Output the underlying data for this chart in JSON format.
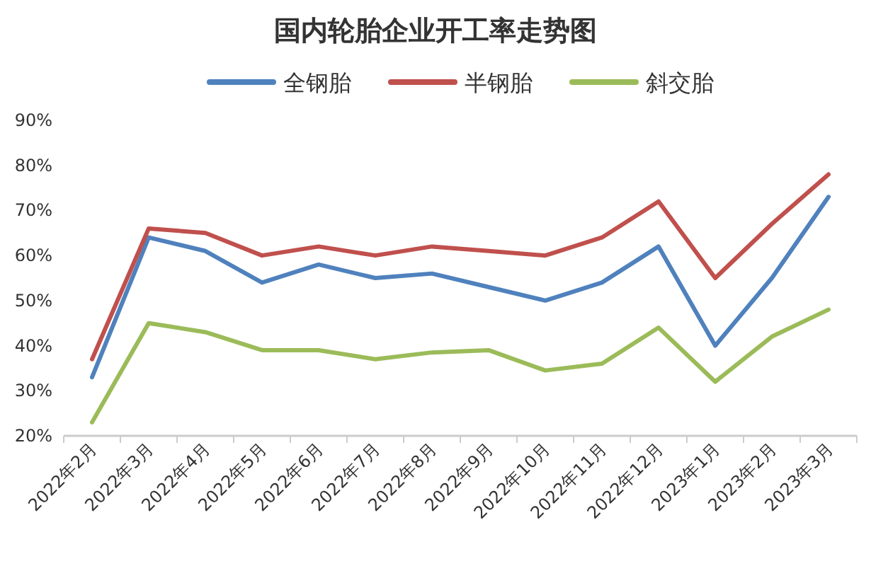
{
  "chart_data": {
    "type": "line",
    "title": "国内轮胎企业开工率走势图",
    "categories": [
      "2022年2月",
      "2022年3月",
      "2022年4月",
      "2022年5月",
      "2022年6月",
      "2022年7月",
      "2022年8月",
      "2022年9月",
      "2022年10月",
      "2022年11月",
      "2022年12月",
      "2023年1月",
      "2023年2月",
      "2023年3月"
    ],
    "series": [
      {
        "name": "全钢胎",
        "color": "#4f81bd",
        "values": [
          33,
          64,
          61,
          54,
          58,
          55,
          56,
          53,
          50,
          54,
          62,
          40,
          55,
          73
        ]
      },
      {
        "name": "半钢胎",
        "color": "#c0504d",
        "values": [
          37,
          66,
          65,
          60,
          62,
          60,
          62,
          61,
          60,
          64,
          72,
          55,
          67,
          78
        ]
      },
      {
        "name": "斜交胎",
        "color": "#9bbb59",
        "values": [
          23,
          45,
          43,
          39,
          39,
          37,
          38.5,
          39,
          34.5,
          36,
          44,
          32,
          42,
          48
        ]
      }
    ],
    "ylim": [
      20,
      90
    ],
    "yticks": [
      {
        "value": 20,
        "label": "20%"
      },
      {
        "value": 30,
        "label": "30%"
      },
      {
        "value": 40,
        "label": "40%"
      },
      {
        "value": 50,
        "label": "50%"
      },
      {
        "value": 60,
        "label": "60%"
      },
      {
        "value": 70,
        "label": "70%"
      },
      {
        "value": 80,
        "label": "80%"
      },
      {
        "value": 90,
        "label": "90%"
      }
    ],
    "legend": "top",
    "grid": false,
    "marker": "none",
    "line_style": "solid"
  }
}
